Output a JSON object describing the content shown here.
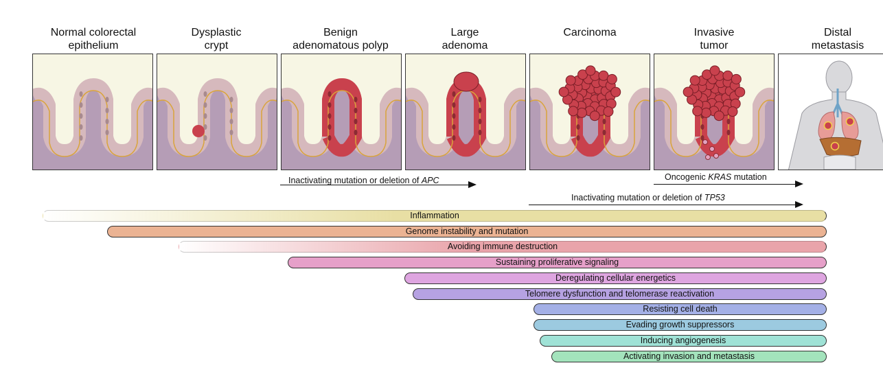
{
  "stages": [
    {
      "title": "Normal colorectal\nepithelium",
      "icon": "normal-crypt-icon"
    },
    {
      "title": "Dysplastic\ncrypt",
      "icon": "dysplastic-crypt-icon"
    },
    {
      "title": "Benign\nadenomatous polyp",
      "icon": "benign-polyp-icon"
    },
    {
      "title": "Large\nadenoma",
      "icon": "large-adenoma-icon"
    },
    {
      "title": "Carcinoma",
      "icon": "carcinoma-icon"
    },
    {
      "title": "Invasive\ntumor",
      "icon": "invasive-tumor-icon"
    },
    {
      "title": "Distal\nmetastasis",
      "icon": "human-body-metastasis-icon"
    }
  ],
  "mutations": {
    "apc": {
      "prefix": "Inactivating mutation or deletion of ",
      "gene": "APC"
    },
    "kras": {
      "prefix": "Oncogenic ",
      "gene": "KRAS",
      "suffix": " mutation"
    },
    "tp53": {
      "prefix": "Inactivating mutation or deletion of ",
      "gene": "TP53"
    }
  },
  "hallmarks": [
    {
      "label": "Inflammation",
      "color": "#e8dfa4"
    },
    {
      "label": "Genome instability and mutation",
      "color": "#ebb393"
    },
    {
      "label": "Avoiding immune destruction",
      "color": "#e9a4aa"
    },
    {
      "label": "Sustaining proliferative signaling",
      "color": "#e6a0c9"
    },
    {
      "label": "Deregulating cellular energetics",
      "color": "#dea5e0"
    },
    {
      "label": "Telomere dysfunction and telomerase reactivation",
      "color": "#b6a2e2"
    },
    {
      "label": "Resisting cell death",
      "color": "#a4b0e6"
    },
    {
      "label": "Evading growth suppressors",
      "color": "#9ccae0"
    },
    {
      "label": "Inducing angiogenesis",
      "color": "#9fe2d6"
    },
    {
      "label": "Activating invasion and metastasis",
      "color": "#a3e3bc"
    }
  ],
  "colors": {
    "lumen": "#f7f6e4",
    "stroma": "#b59db6",
    "normal_cell": "#d6b9bd",
    "tumor_cell": "#c9414d",
    "nucleus": "#8b2b33",
    "basement": "#d9a43b"
  }
}
